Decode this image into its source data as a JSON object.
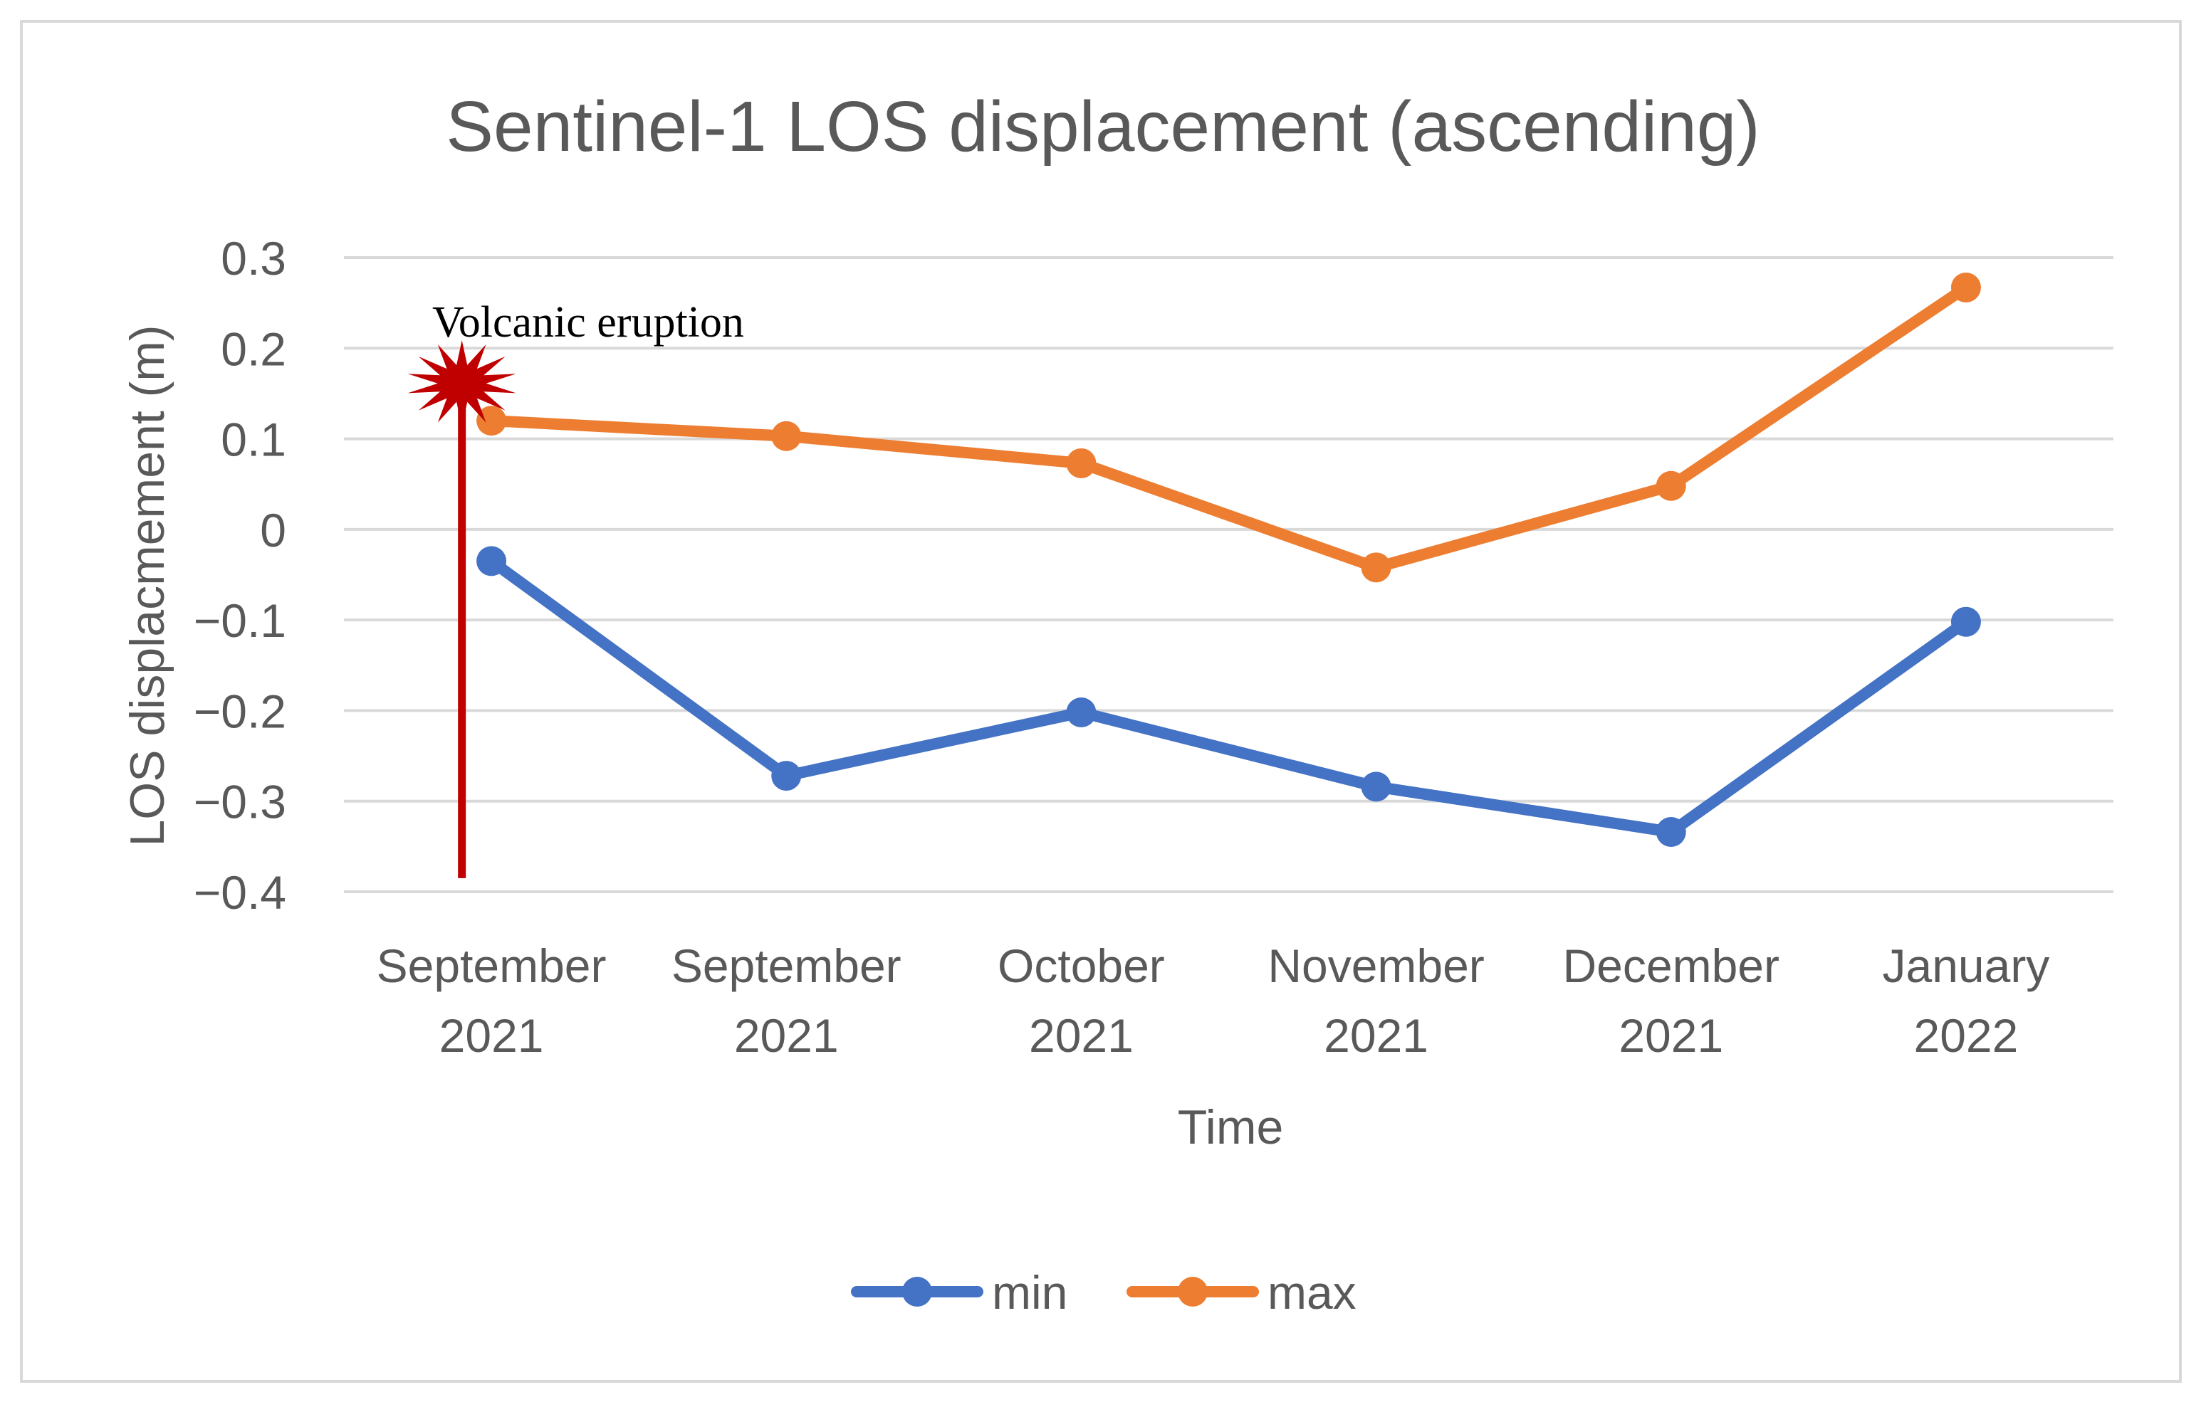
{
  "chart_data": {
    "type": "line",
    "title": "Sentinel-1 LOS displacement (ascending)",
    "xlabel": "Time",
    "ylabel": "LOS displacmement (m)",
    "categories": [
      [
        "September",
        "2021"
      ],
      [
        "September",
        "2021"
      ],
      [
        "October",
        "2021"
      ],
      [
        "November",
        "2021"
      ],
      [
        "December",
        "2021"
      ],
      [
        "January",
        "2022"
      ]
    ],
    "ylim": [
      -0.4,
      0.3
    ],
    "yticks": [
      0.3,
      0.2,
      0.1,
      0,
      -0.1,
      -0.2,
      -0.3,
      -0.4
    ],
    "ytick_labels": [
      "0.3",
      "0.2",
      "0.1",
      "0",
      "−0.1",
      "−0.2",
      "−0.3",
      "−0.4"
    ],
    "grid": true,
    "legend_position": "bottom",
    "series": [
      {
        "name": "min",
        "color": "#4472c4",
        "values": [
          -0.035,
          -0.272,
          -0.202,
          -0.284,
          -0.334,
          -0.102
        ]
      },
      {
        "name": "max",
        "color": "#ed7d31",
        "values": [
          0.12,
          0.103,
          0.073,
          -0.042,
          0.048,
          0.267
        ]
      }
    ],
    "annotations": [
      {
        "text": "Volcanic eruption",
        "color": "#c00000",
        "x_category_position": 0.4,
        "y_top": 0.165,
        "y_bottom": -0.385
      }
    ]
  }
}
